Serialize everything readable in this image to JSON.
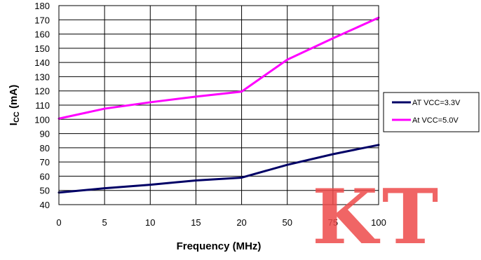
{
  "chart_data": {
    "type": "line",
    "xlabel": "Frequency (MHz)",
    "ylabel_main": "I",
    "ylabel_sub": "CC",
    "ylabel_unit": " (mA)",
    "categories": [
      "0",
      "5",
      "10",
      "15",
      "20",
      "50",
      "75",
      "100"
    ],
    "ylim": [
      40,
      180
    ],
    "ystep": 10,
    "grid": true,
    "legend_position": "right",
    "series": [
      {
        "name": "AT VCC=3.3V",
        "color": "#000066",
        "values": [
          48.5,
          51.5,
          54.0,
          57.0,
          59.0,
          68.0,
          75.5,
          82.0
        ]
      },
      {
        "name": "At VCC=5.0V",
        "color": "#ff00ff",
        "values": [
          100.5,
          107.5,
          112.0,
          116.0,
          119.5,
          142.0,
          157.0,
          171.5
        ]
      }
    ]
  },
  "watermark": {
    "text": "KT",
    "color": "#ed4a4a"
  }
}
